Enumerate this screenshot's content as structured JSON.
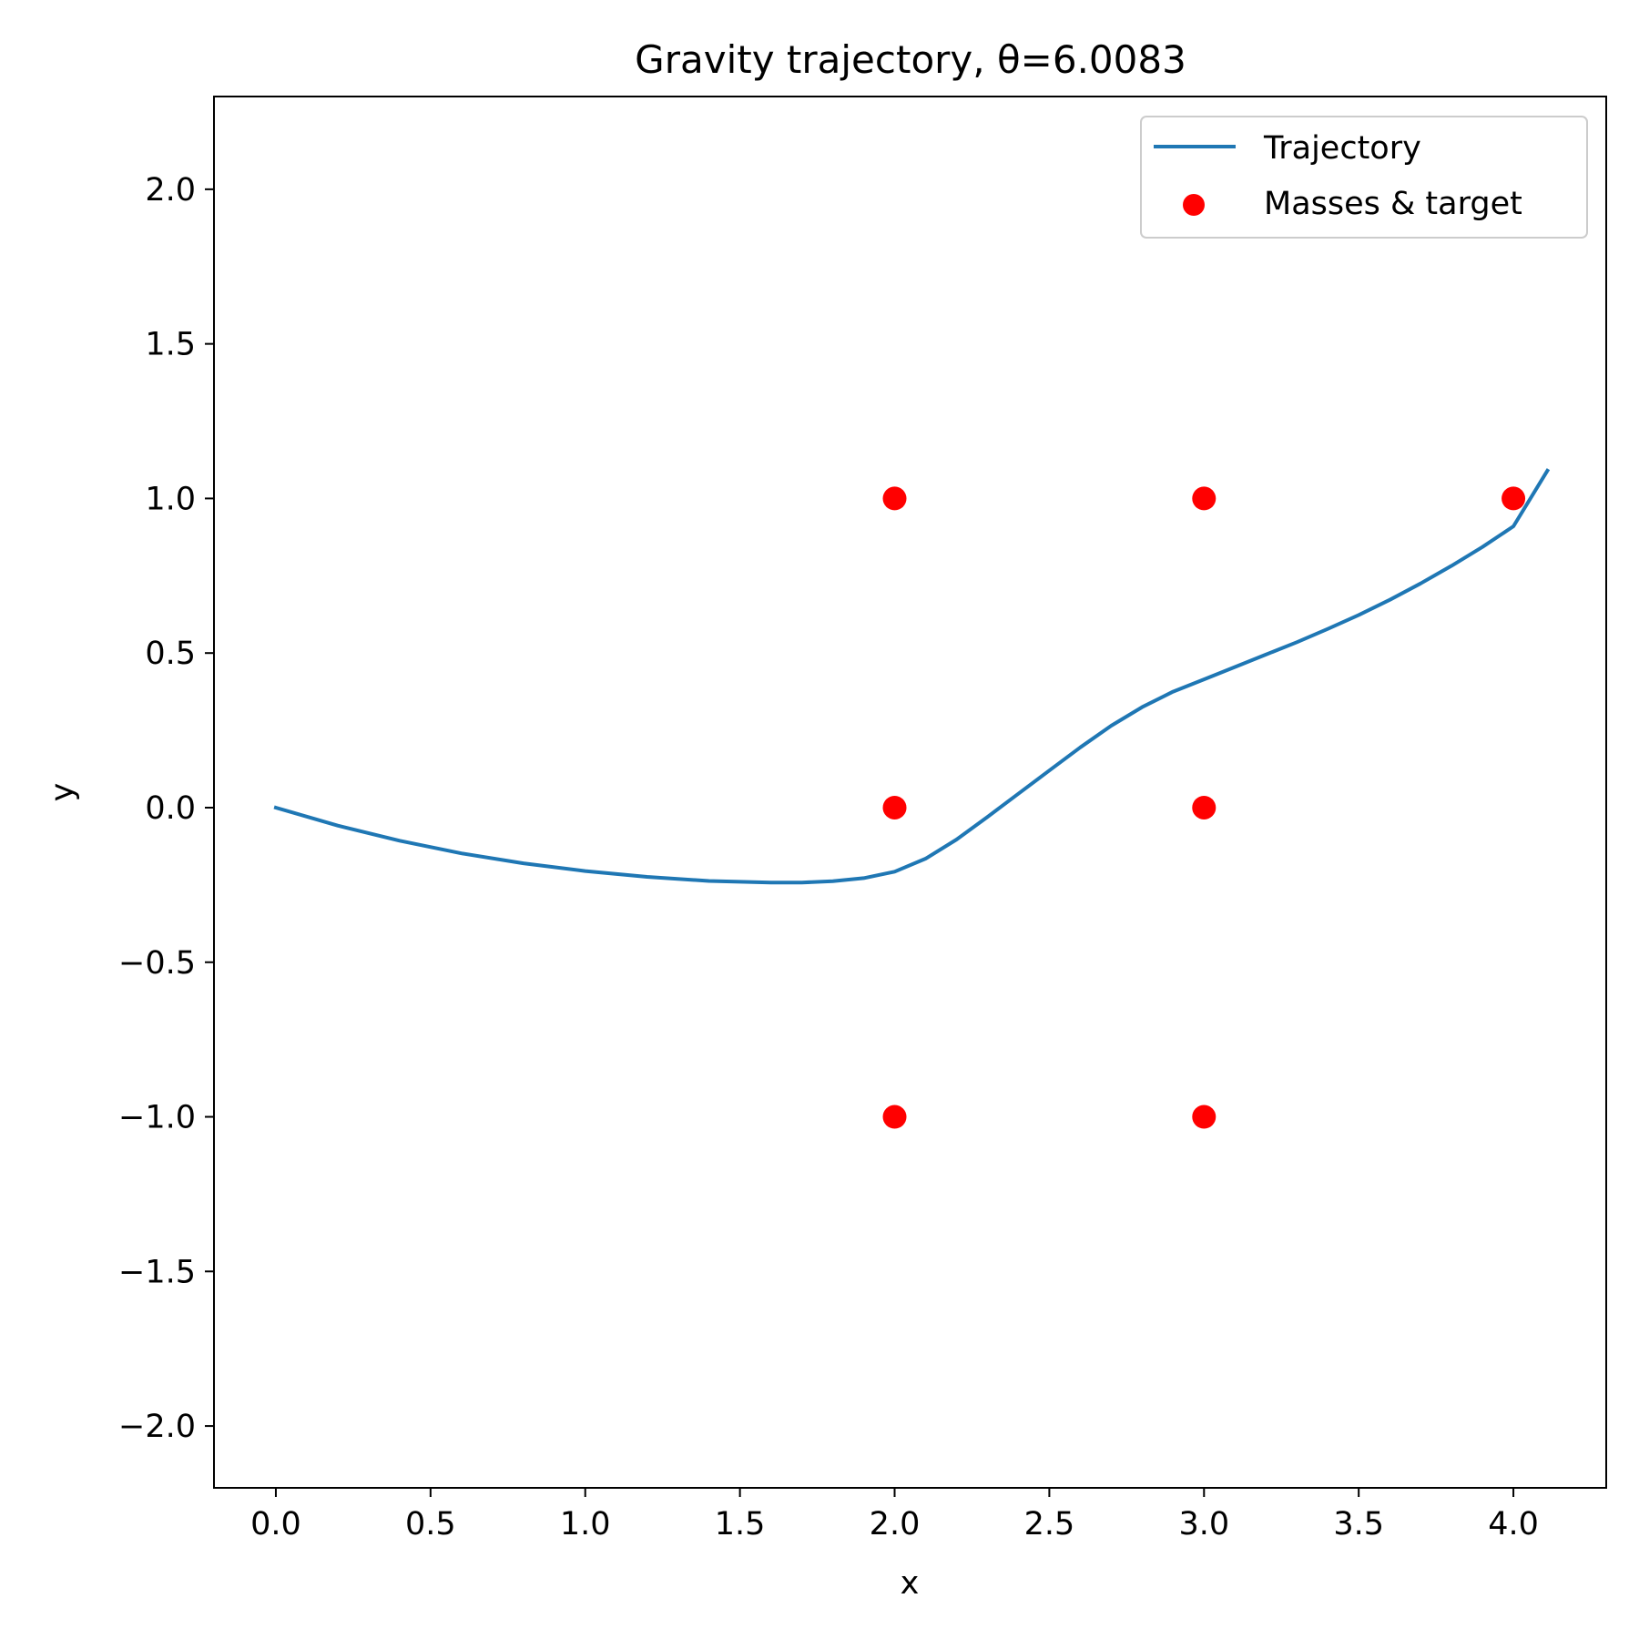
{
  "chart_data": {
    "type": "line",
    "title": "Gravity trajectory, θ=6.0083",
    "xlabel": "x",
    "ylabel": "y",
    "xlim": [
      -0.2,
      4.3
    ],
    "ylim": [
      -2.2,
      2.3
    ],
    "x_ticks": [
      0.0,
      0.5,
      1.0,
      1.5,
      2.0,
      2.5,
      3.0,
      3.5,
      4.0
    ],
    "x_tick_labels": [
      "0.0",
      "0.5",
      "1.0",
      "1.5",
      "2.0",
      "2.5",
      "3.0",
      "3.5",
      "4.0"
    ],
    "y_ticks": [
      -2.0,
      -1.5,
      -1.0,
      -0.5,
      0.0,
      0.5,
      1.0,
      1.5,
      2.0
    ],
    "y_tick_labels": [
      "−2.0",
      "−1.5",
      "−1.0",
      "−0.5",
      "0.0",
      "0.5",
      "1.0",
      "1.5",
      "2.0"
    ],
    "grid": false,
    "legend_position": "top-right",
    "series": [
      {
        "name": "Trajectory",
        "type": "line",
        "color": "#1f77b4",
        "x": [
          0.0,
          0.2,
          0.4,
          0.6,
          0.8,
          1.0,
          1.2,
          1.4,
          1.6,
          1.7,
          1.8,
          1.9,
          2.0,
          2.1,
          2.2,
          2.3,
          2.4,
          2.5,
          2.6,
          2.7,
          2.8,
          2.9,
          3.0,
          3.1,
          3.2,
          3.3,
          3.4,
          3.5,
          3.6,
          3.7,
          3.8,
          3.9,
          4.0,
          4.11
        ],
        "y": [
          0.0,
          -0.058,
          -0.107,
          -0.148,
          -0.18,
          -0.205,
          -0.224,
          -0.237,
          -0.242,
          -0.242,
          -0.238,
          -0.228,
          -0.207,
          -0.165,
          -0.103,
          -0.03,
          0.045,
          0.12,
          0.195,
          0.265,
          0.325,
          0.375,
          0.415,
          0.455,
          0.495,
          0.535,
          0.578,
          0.623,
          0.672,
          0.725,
          0.782,
          0.843,
          0.91,
          1.09
        ]
      },
      {
        "name": "Masses & target",
        "type": "scatter",
        "color": "#ff0000",
        "points": [
          {
            "x": 2,
            "y": 1
          },
          {
            "x": 2,
            "y": 0
          },
          {
            "x": 2,
            "y": -1
          },
          {
            "x": 3,
            "y": 1
          },
          {
            "x": 3,
            "y": 0
          },
          {
            "x": 3,
            "y": -1
          },
          {
            "x": 4,
            "y": 1
          }
        ]
      }
    ]
  }
}
